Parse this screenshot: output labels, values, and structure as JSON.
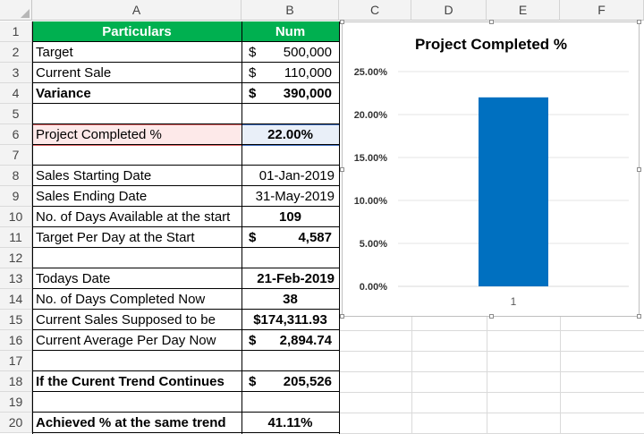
{
  "columns": [
    "A",
    "B",
    "C",
    "D",
    "E",
    "F"
  ],
  "rows": [
    "1",
    "2",
    "3",
    "4",
    "5",
    "6",
    "7",
    "8",
    "9",
    "10",
    "11",
    "12",
    "13",
    "14",
    "15",
    "16",
    "17",
    "18",
    "19",
    "20"
  ],
  "table": {
    "header": {
      "particulars": "Particulars",
      "num": "Num"
    },
    "target": {
      "label": "Target",
      "currency": "$",
      "value": "500,000"
    },
    "current_sale": {
      "label": "Current Sale",
      "currency": "$",
      "value": "110,000"
    },
    "variance": {
      "label": "Variance",
      "currency": "$",
      "value": "390,000"
    },
    "project_completed": {
      "label": "Project Completed %",
      "value": "22.00%"
    },
    "sales_start": {
      "label": "Sales Starting Date",
      "value": "01-Jan-2019"
    },
    "sales_end": {
      "label": "Sales Ending Date",
      "value": "31-May-2019"
    },
    "days_available": {
      "label": "No. of Days Available at the start",
      "value": "109"
    },
    "target_per_day": {
      "label": "Target Per Day at the Start",
      "currency": "$",
      "value": "4,587"
    },
    "todays_date": {
      "label": "Todays Date",
      "value": "21-Feb-2019"
    },
    "days_completed": {
      "label": "No. of Days Completed Now",
      "value": "38"
    },
    "supposed_sales": {
      "label": "Current Sales Supposed to be",
      "value": "$174,311.93"
    },
    "current_avg": {
      "label": "Current Average Per Day Now",
      "currency": "$",
      "value": "2,894.74"
    },
    "trend": {
      "label": "If the Curent Trend Continues",
      "currency": "$",
      "value": "205,526"
    },
    "achieved": {
      "label": "Achieved % at the same trend",
      "value": "41.11%"
    }
  },
  "chart_data": {
    "type": "bar",
    "title": "Project Completed %",
    "categories": [
      "1"
    ],
    "values": [
      0.22
    ],
    "ylim": [
      0,
      0.25
    ],
    "yticks": [
      "0.00%",
      "5.00%",
      "10.00%",
      "15.00%",
      "20.00%",
      "25.00%"
    ],
    "grid": true,
    "bar_color": "#0070c0"
  },
  "colors": {
    "header_green": "#00b050",
    "selected_pink": "#fde9e9",
    "selected_blue": "#e9eff8"
  }
}
